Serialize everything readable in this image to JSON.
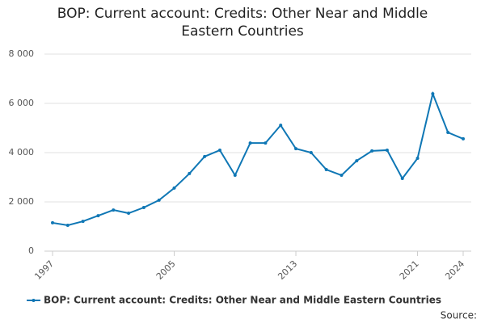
{
  "chart_data": {
    "type": "line",
    "title": "BOP: Current account: Credits: Other Near and Middle Eastern Countries",
    "x": [
      1997,
      1998,
      1999,
      2000,
      2001,
      2002,
      2003,
      2004,
      2005,
      2006,
      2007,
      2008,
      2009,
      2010,
      2011,
      2012,
      2013,
      2014,
      2015,
      2016,
      2017,
      2018,
      2019,
      2020,
      2021,
      2022,
      2023,
      2024
    ],
    "series": [
      {
        "name": "BOP: Current account: Credits: Other Near and Middle Eastern Countries",
        "color": "#0f77b5",
        "values": [
          1150,
          1050,
          1210,
          1440,
          1670,
          1540,
          1770,
          2070,
          2560,
          3150,
          3840,
          4100,
          3080,
          4390,
          4390,
          5110,
          4160,
          4000,
          3310,
          3080,
          3670,
          4070,
          4100,
          2950,
          3770,
          6390,
          4820,
          4560
        ]
      }
    ],
    "xlim": [
      1997,
      2024
    ],
    "xticks": [
      1997,
      2005,
      2013,
      2021,
      2024
    ],
    "ylim": [
      0,
      8000
    ],
    "yticks": [
      0,
      {
        "value": 2000,
        "label": "2 000"
      },
      {
        "value": 4000,
        "label": "4 000"
      },
      {
        "value": 6000,
        "label": "6 000"
      },
      {
        "value": 8000,
        "label": "8 000"
      }
    ],
    "grid": true,
    "source": "Source:"
  }
}
